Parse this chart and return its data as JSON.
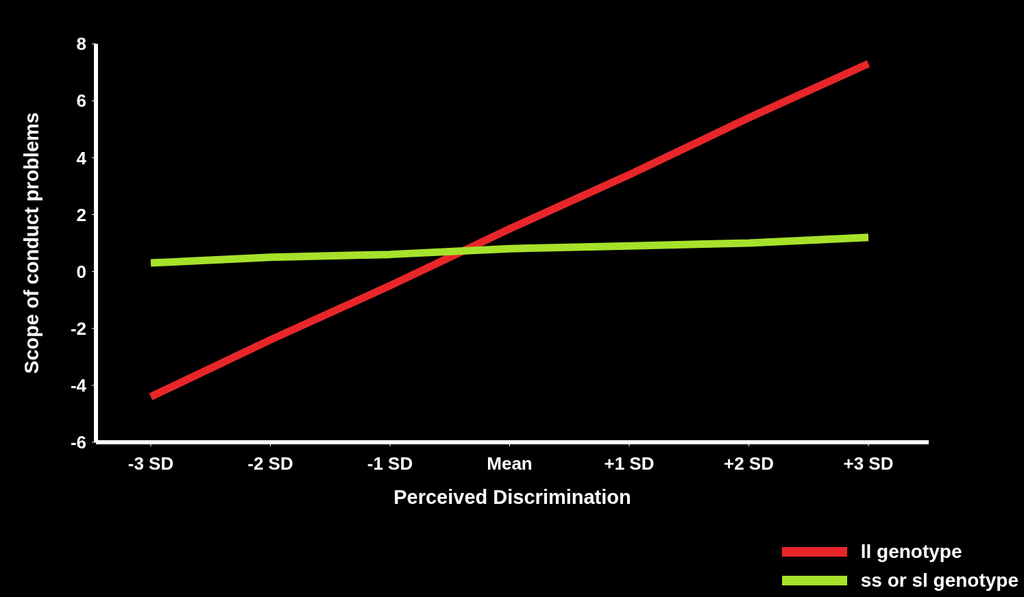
{
  "chart_data": {
    "type": "line",
    "xlabel": "Perceived Discrimination",
    "ylabel": "Scope of conduct problems",
    "categories": [
      "-3 SD",
      "-2 SD",
      "-1 SD",
      "Mean",
      "+1 SD",
      "+2 SD",
      "+3 SD"
    ],
    "series": [
      {
        "name": "ll genotype",
        "color": "#e8262a",
        "values": [
          -4.4,
          -2.4,
          -0.5,
          1.5,
          3.4,
          5.4,
          7.3
        ]
      },
      {
        "name": "ss or sl genotype",
        "color": "#a6e22b",
        "values": [
          0.3,
          0.5,
          0.6,
          0.8,
          0.9,
          1.0,
          1.2
        ]
      }
    ],
    "ylim": [
      -6,
      8
    ],
    "yticks": [
      -6,
      -4,
      -2,
      0,
      2,
      4,
      6,
      8
    ],
    "grid": false,
    "legend": "bottom right",
    "marker": "none",
    "line_style": "solid"
  }
}
